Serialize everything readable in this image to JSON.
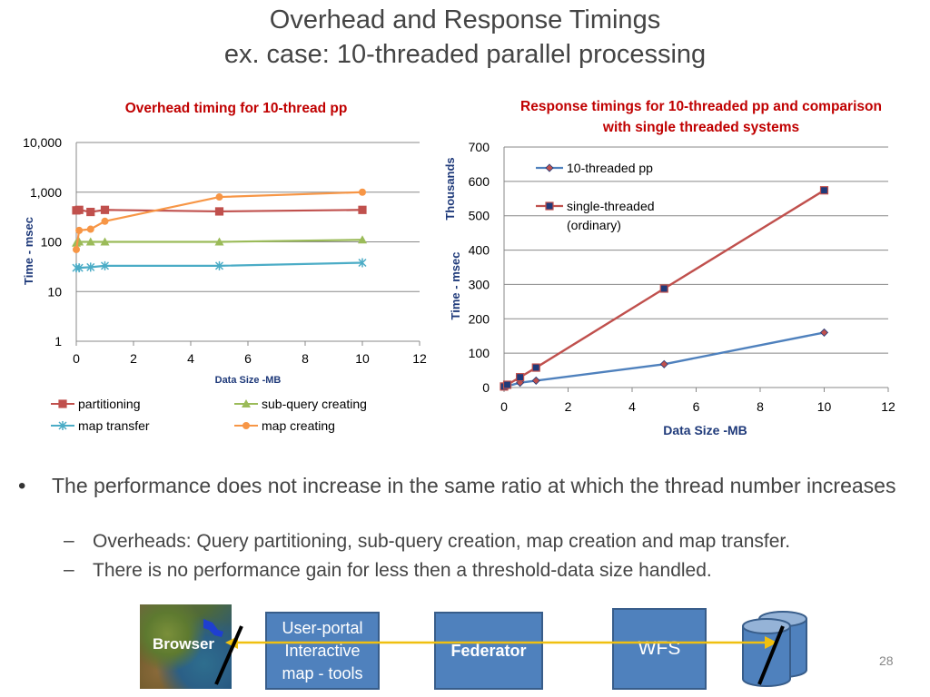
{
  "slide": {
    "title_line1": "Overhead and Response Timings",
    "title_line2": "ex. case: 10-threaded parallel processing",
    "page_number": "28"
  },
  "bullets": {
    "main": "The performance does not increase in the same ratio at which the thread number increases",
    "sub1": "Overheads: Query partitioning, sub-query creation, map creation and map transfer.",
    "sub2": "There is no performance gain for less then a threshold-data size handled.",
    "dash": "–",
    "dot": "•"
  },
  "diagram": {
    "browser_label": "Browser",
    "portal_label": "User-portal Interactive map - tools",
    "federator_label": "Federator",
    "wfs_label": "WFS",
    "arrow_color": "#f0c010",
    "box_color": "#4f81bd"
  },
  "chart_data": [
    {
      "type": "line",
      "title": "Overhead timing for 10-thread pp",
      "xlabel": "Data Size -MB",
      "ylabel": "Time - msec",
      "y_scale": "log",
      "xlim": [
        0,
        12
      ],
      "ylim": [
        1,
        10000
      ],
      "x_ticks": [
        "0",
        "2",
        "4",
        "6",
        "8",
        "10",
        "12"
      ],
      "y_ticks": [
        "1",
        "10",
        "100",
        "1,000",
        "10,000"
      ],
      "grid": true,
      "legend_position": "bottom",
      "series": [
        {
          "name": "partitioning",
          "color": "#c0504d",
          "marker": "square",
          "x": [
            0,
            0.1,
            0.5,
            1,
            5,
            10
          ],
          "y": [
            430,
            440,
            400,
            440,
            410,
            440
          ]
        },
        {
          "name": "sub-query creating",
          "color": "#9bbb59",
          "marker": "triangle",
          "x": [
            0,
            0.1,
            0.5,
            1,
            5,
            10
          ],
          "y": [
            95,
            100,
            100,
            100,
            100,
            110
          ]
        },
        {
          "name": "map transfer",
          "color": "#4bacc6",
          "marker": "star",
          "x": [
            0,
            0.1,
            0.5,
            1,
            5,
            10
          ],
          "y": [
            30,
            30,
            31,
            33,
            33,
            38
          ]
        },
        {
          "name": "map creating",
          "color": "#f79646",
          "marker": "circle",
          "x": [
            0,
            0.1,
            0.5,
            1,
            5,
            10
          ],
          "y": [
            70,
            170,
            180,
            260,
            800,
            1000
          ]
        }
      ]
    },
    {
      "type": "line",
      "title": "Response timings for 10-threaded pp and comparison with single threaded systems",
      "xlabel": "Data Size -MB",
      "ylabel": "Time - msec",
      "y_units_label": "Thousands",
      "xlim": [
        0,
        12
      ],
      "ylim": [
        0,
        700
      ],
      "x_ticks": [
        "0",
        "2",
        "4",
        "6",
        "8",
        "10",
        "12"
      ],
      "y_ticks": [
        "0",
        "100",
        "200",
        "300",
        "400",
        "500",
        "600",
        "700"
      ],
      "grid": true,
      "legend_position": "top-left",
      "series": [
        {
          "name": "10-threaded pp",
          "color": "#4f81bd",
          "marker": "diamond",
          "x": [
            0,
            0.1,
            0.5,
            1,
            5,
            10
          ],
          "y": [
            2,
            4,
            14,
            20,
            68,
            160
          ]
        },
        {
          "name": "single-threaded (ordinary)",
          "color": "#c0504d",
          "marker": "square",
          "x": [
            0,
            0.1,
            0.5,
            1,
            5,
            10
          ],
          "y": [
            3,
            8,
            30,
            58,
            288,
            574
          ]
        }
      ]
    }
  ]
}
